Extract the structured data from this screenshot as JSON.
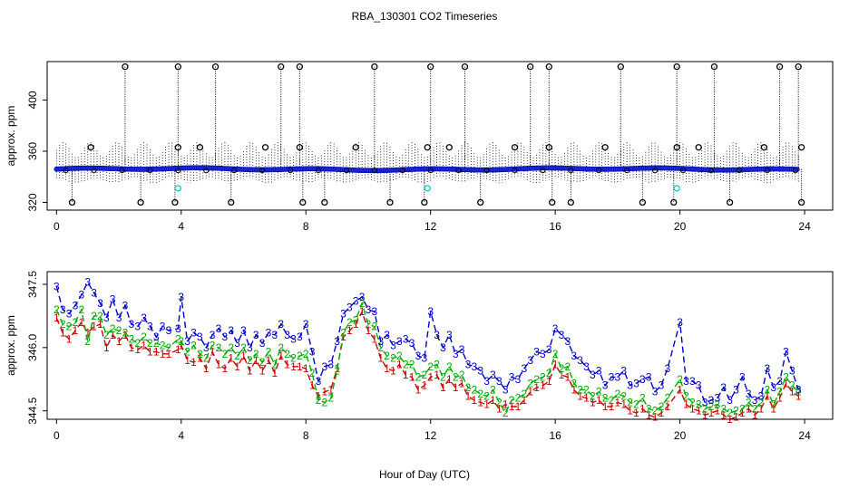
{
  "chart_data": [
    {
      "type": "scatter",
      "title": "RBA_130301  CO2 Timeseries",
      "ylabel": "approx. ppm",
      "xlabel": "",
      "xlim": [
        -0.3,
        24.9
      ],
      "ylim": [
        314,
        430
      ],
      "x_ticks": [
        0,
        4,
        8,
        12,
        16,
        20,
        24
      ],
      "y_ticks": [
        320,
        360,
        400
      ],
      "grid": false,
      "baseline_ppm": 346,
      "spikes_high": [
        2.2,
        3.9,
        5.1,
        7.2,
        7.8,
        10.2,
        12.0,
        13.1,
        15.2,
        15.8,
        18.1,
        19.9,
        21.1,
        23.2,
        23.8
      ],
      "spikes_low": [
        0.5,
        2.7,
        3.8,
        5.6,
        7.9,
        8.6,
        10.7,
        11.8,
        13.6,
        15.9,
        16.5,
        18.8,
        19.8,
        21.6,
        23.9
      ],
      "mid_markers": [
        {
          "x": 1.1,
          "y": 363
        },
        {
          "x": 3.9,
          "y": 363
        },
        {
          "x": 4.6,
          "y": 363
        },
        {
          "x": 6.7,
          "y": 363
        },
        {
          "x": 7.8,
          "y": 363
        },
        {
          "x": 9.6,
          "y": 363
        },
        {
          "x": 11.9,
          "y": 363
        },
        {
          "x": 12.6,
          "y": 363
        },
        {
          "x": 14.7,
          "y": 363
        },
        {
          "x": 15.8,
          "y": 363
        },
        {
          "x": 17.6,
          "y": 363
        },
        {
          "x": 19.9,
          "y": 363
        },
        {
          "x": 20.6,
          "y": 363
        },
        {
          "x": 22.7,
          "y": 363
        },
        {
          "x": 23.9,
          "y": 363
        }
      ],
      "cyan_markers": [
        {
          "x": 3.9,
          "y": 331
        },
        {
          "x": 11.9,
          "y": 331
        },
        {
          "x": 19.9,
          "y": 331
        }
      ],
      "series": [
        {
          "color": "#0000cc",
          "marker": "filled-circle"
        },
        {
          "color": "#000000",
          "marker": "open-circle"
        },
        {
          "color": "#00cccc",
          "marker": "open-circle"
        }
      ]
    },
    {
      "type": "line",
      "title": "",
      "ylabel": "approx. ppm",
      "xlabel": "Hour of Day (UTC)",
      "xlim": [
        -0.3,
        24.9
      ],
      "ylim": [
        344.3,
        347.8
      ],
      "x_ticks": [
        0,
        4,
        8,
        12,
        16,
        20,
        24
      ],
      "y_ticks": [
        "344.5",
        "346.0",
        "347.5"
      ],
      "y_tick_values": [
        344.5,
        346.0,
        347.5
      ],
      "grid": false,
      "x": [
        0.0,
        0.2,
        0.4,
        0.6,
        0.8,
        1.0,
        1.2,
        1.4,
        1.6,
        1.8,
        2.0,
        2.2,
        2.4,
        2.6,
        2.8,
        3.0,
        3.2,
        3.4,
        3.6,
        3.9,
        4.0,
        4.2,
        4.4,
        4.6,
        4.8,
        5.0,
        5.2,
        5.4,
        5.6,
        5.8,
        6.0,
        6.2,
        6.4,
        6.6,
        6.8,
        7.0,
        7.2,
        7.4,
        7.6,
        7.8,
        8.0,
        8.2,
        8.4,
        8.6,
        8.8,
        9.0,
        9.2,
        9.4,
        9.6,
        9.8,
        10.0,
        10.2,
        10.4,
        10.6,
        10.8,
        11.0,
        11.2,
        11.4,
        11.6,
        11.8,
        12.0,
        12.2,
        12.4,
        12.6,
        12.8,
        13.0,
        13.2,
        13.4,
        13.6,
        13.8,
        14.0,
        14.2,
        14.4,
        14.6,
        14.8,
        15.0,
        15.2,
        15.4,
        15.6,
        15.8,
        16.0,
        16.2,
        16.4,
        16.6,
        16.8,
        17.0,
        17.2,
        17.4,
        17.6,
        17.8,
        18.0,
        18.2,
        18.4,
        18.6,
        18.8,
        19.0,
        19.2,
        19.4,
        19.6,
        20.0,
        20.2,
        20.4,
        20.6,
        20.8,
        21.0,
        21.2,
        21.4,
        21.6,
        21.8,
        22.0,
        22.2,
        22.4,
        22.6,
        22.8,
        23.0,
        23.2,
        23.4,
        23.6,
        23.8
      ],
      "series": [
        {
          "label": "3",
          "color": "#0000cc",
          "values": [
            347.45,
            346.9,
            346.8,
            347.0,
            347.25,
            347.55,
            347.3,
            347.05,
            346.7,
            347.15,
            346.7,
            347.0,
            346.55,
            346.5,
            346.7,
            346.5,
            346.25,
            346.5,
            346.4,
            346.45,
            347.2,
            346.15,
            346.35,
            346.25,
            346.0,
            346.3,
            346.45,
            346.25,
            346.4,
            346.1,
            346.4,
            346.0,
            346.3,
            346.1,
            346.35,
            346.3,
            346.55,
            346.3,
            346.2,
            346.25,
            346.55,
            345.9,
            345.2,
            345.55,
            345.6,
            346.15,
            346.8,
            346.95,
            347.1,
            347.2,
            346.9,
            346.85,
            346.15,
            346.3,
            346.05,
            346.15,
            346.2,
            346.1,
            345.8,
            345.75,
            346.85,
            346.3,
            346.0,
            346.3,
            345.85,
            345.95,
            345.6,
            345.55,
            345.45,
            345.2,
            345.35,
            345.2,
            345.0,
            345.3,
            345.25,
            345.5,
            345.7,
            345.9,
            345.85,
            345.95,
            346.45,
            346.3,
            346.15,
            345.8,
            345.7,
            345.55,
            345.35,
            345.45,
            345.1,
            345.3,
            345.3,
            345.45,
            345.1,
            345.15,
            345.25,
            345.3,
            344.95,
            345.1,
            345.5,
            346.6,
            345.2,
            345.2,
            345.1,
            344.7,
            344.75,
            344.8,
            345.05,
            344.75,
            345.0,
            345.3,
            344.9,
            344.75,
            344.85,
            345.5,
            345.05,
            345.2,
            345.9,
            345.45,
            345.0
          ]
        },
        {
          "label": "2",
          "color": "#00aa00",
          "values": [
            346.9,
            346.55,
            346.5,
            346.6,
            346.9,
            346.15,
            346.75,
            346.75,
            346.3,
            346.45,
            346.4,
            346.35,
            346.2,
            346.1,
            346.25,
            346.1,
            346.1,
            346.05,
            346.0,
            346.2,
            346.15,
            345.9,
            346.05,
            345.85,
            345.75,
            346.05,
            346.0,
            345.85,
            346.0,
            345.8,
            346.0,
            345.7,
            345.85,
            345.65,
            345.9,
            345.6,
            346.0,
            345.85,
            345.75,
            345.8,
            345.85,
            345.4,
            344.75,
            344.7,
            344.8,
            345.45,
            346.35,
            346.6,
            346.65,
            347.05,
            346.55,
            346.5,
            346.0,
            345.8,
            345.75,
            345.8,
            345.6,
            345.6,
            345.3,
            345.35,
            345.55,
            345.6,
            345.3,
            345.55,
            345.3,
            345.35,
            345.05,
            345.0,
            344.9,
            344.85,
            345.0,
            344.7,
            344.45,
            344.75,
            344.8,
            344.9,
            345.15,
            345.25,
            345.3,
            345.4,
            345.85,
            345.5,
            345.55,
            345.15,
            345.0,
            345.0,
            344.85,
            344.95,
            344.8,
            344.75,
            344.9,
            344.85,
            344.7,
            344.65,
            344.8,
            344.55,
            344.5,
            344.6,
            344.8,
            345.25,
            344.85,
            344.7,
            344.65,
            344.55,
            344.6,
            344.65,
            344.55,
            344.45,
            344.5,
            344.55,
            344.7,
            344.55,
            344.7,
            345.0,
            344.65,
            344.95,
            345.3,
            345.1,
            344.95
          ]
        },
        {
          "label": "1",
          "color": "#cc0000",
          "values": [
            346.7,
            346.35,
            346.2,
            346.4,
            346.6,
            346.35,
            346.5,
            346.55,
            346.0,
            346.3,
            346.15,
            346.3,
            346.0,
            345.95,
            346.05,
            345.9,
            345.9,
            345.85,
            345.85,
            345.95,
            346.05,
            345.7,
            345.65,
            345.75,
            345.5,
            345.9,
            345.6,
            345.5,
            345.75,
            345.55,
            345.8,
            345.45,
            345.7,
            345.45,
            345.7,
            345.4,
            345.8,
            345.6,
            345.55,
            345.55,
            345.5,
            345.1,
            344.85,
            344.95,
            345.0,
            345.5,
            346.25,
            346.4,
            346.55,
            346.85,
            346.4,
            346.2,
            345.75,
            345.5,
            345.45,
            345.6,
            345.35,
            345.3,
            345.0,
            345.1,
            345.3,
            345.35,
            345.05,
            345.25,
            345.05,
            345.15,
            344.85,
            344.75,
            344.7,
            344.65,
            344.75,
            344.55,
            344.65,
            344.6,
            344.6,
            344.75,
            344.95,
            345.05,
            345.1,
            345.2,
            345.6,
            345.35,
            345.3,
            345.0,
            344.85,
            344.8,
            344.7,
            344.75,
            344.6,
            344.6,
            344.7,
            344.65,
            344.5,
            344.45,
            344.55,
            344.4,
            344.35,
            344.45,
            344.6,
            345.0,
            344.65,
            344.55,
            344.5,
            344.4,
            344.45,
            344.5,
            344.4,
            344.3,
            344.35,
            344.45,
            344.55,
            344.4,
            344.55,
            344.85,
            344.55,
            344.8,
            345.15,
            344.95,
            344.85
          ]
        }
      ]
    }
  ]
}
